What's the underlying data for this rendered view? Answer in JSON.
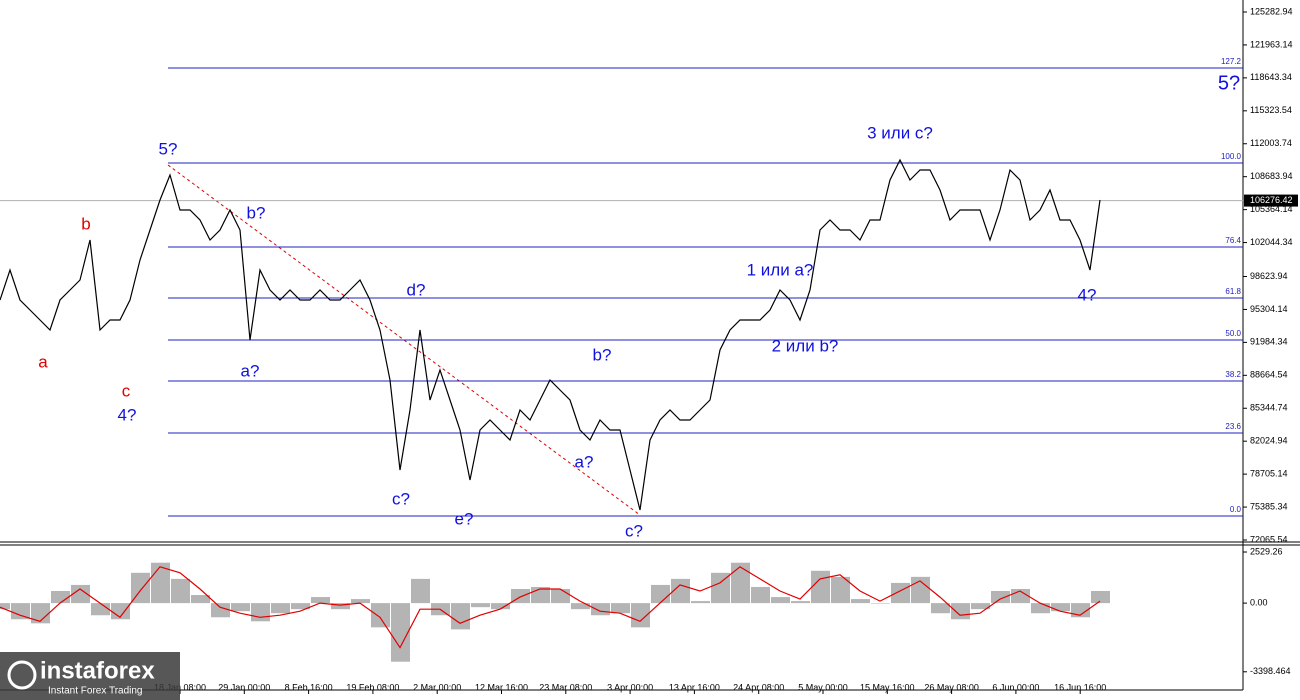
{
  "chart_data": [
    {
      "type": "line",
      "color": "#000000",
      "values": [
        96255,
        99279,
        96255,
        95247,
        94239,
        93231,
        96255,
        97263,
        98271,
        102302,
        93231,
        94239,
        94239,
        96255,
        100286,
        103310,
        106334,
        108854,
        105326,
        105326,
        104318,
        102302,
        103310,
        105326,
        103310,
        92223,
        99279,
        97263,
        96255,
        97263,
        96255,
        96255,
        97263,
        96255,
        96255,
        97263,
        98271,
        96255,
        93231,
        88192,
        79121,
        85168,
        93231,
        86176,
        89200,
        86176,
        83153,
        78113,
        83153,
        84160,
        83153,
        82144,
        85168,
        84160,
        86176,
        88192,
        87184,
        86176,
        83153,
        82144,
        84160,
        83153,
        83153,
        79121,
        75089,
        82144,
        84160,
        85168,
        84160,
        84160,
        85168,
        86176,
        91215,
        93231,
        94239,
        94239,
        94239,
        95247,
        97263,
        96255,
        94239,
        97263,
        103310,
        104318,
        103310,
        103310,
        102302,
        104318,
        104318,
        108350,
        110366,
        108350,
        109358,
        109358,
        107342,
        104318,
        105326,
        105326,
        105326,
        102302,
        105326,
        109358,
        108350,
        104318,
        105326,
        107342,
        104318,
        104318,
        102302,
        99279,
        106334
      ],
      "ylim": [
        71864,
        126492
      ],
      "yticks": [
        125282.94,
        121963.14,
        118643.34,
        115323.54,
        112003.74,
        108683.94,
        105364.14,
        102044.34,
        98623.94,
        95304.14,
        91984.34,
        88664.54,
        85344.74,
        82024.94,
        78705.14,
        75385.34,
        72065.54
      ],
      "last_price": 106276.42,
      "levels_color": "#2020c0",
      "levels": [
        {
          "value": 119639,
          "label": "127.2"
        },
        {
          "value": 110064,
          "label": "100.0"
        },
        {
          "value": 101598,
          "label": "76.4"
        },
        {
          "value": 96458,
          "label": "61.8"
        },
        {
          "value": 92225,
          "label": "50.0"
        },
        {
          "value": 88093,
          "label": "38.2"
        },
        {
          "value": 82852,
          "label": "23.6"
        },
        {
          "value": 74486,
          "label": "0.0"
        }
      ],
      "annotations": [
        {
          "text": "a",
          "color": "#e00000"
        },
        {
          "text": "b",
          "color": "#e00000"
        },
        {
          "text": "c",
          "color": "#e00000"
        },
        {
          "text": "4?",
          "color": "#1010e0"
        },
        {
          "text": "5?",
          "color": "#1010e0"
        },
        {
          "text": "b?",
          "color": "#1010e0"
        },
        {
          "text": "a?",
          "color": "#1010e0"
        },
        {
          "text": "d?",
          "color": "#1010e0"
        },
        {
          "text": "c?",
          "color": "#1010e0"
        },
        {
          "text": "e?",
          "color": "#1010e0"
        },
        {
          "text": "b?",
          "color": "#1010e0"
        },
        {
          "text": "a?",
          "color": "#1010e0"
        },
        {
          "text": "c?",
          "color": "#1010e0"
        },
        {
          "text": "1 или a?",
          "color": "#1010e0"
        },
        {
          "text": "2 или b?",
          "color": "#1010e0"
        },
        {
          "text": "3 или c?",
          "color": "#1010e0"
        },
        {
          "text": "4?",
          "color": "#1010e0"
        },
        {
          "text": "5?",
          "color": "#1010e0"
        }
      ]
    },
    {
      "type": "bar",
      "series": [
        {
          "color": "#b4b4b4",
          "values": [
            -300,
            -800,
            -1000,
            600,
            900,
            -600,
            -800,
            1500,
            2000,
            1200,
            400,
            -700,
            -400,
            -900,
            -500,
            -300,
            300,
            -300,
            200,
            -1200,
            -2900,
            1200,
            -600,
            -1300,
            -200,
            -300,
            700,
            800,
            700,
            -300,
            -600,
            -500,
            -1200,
            900,
            1200,
            100,
            1500,
            2000,
            800,
            300,
            100,
            1600,
            1300,
            200,
            0,
            1000,
            1300,
            -500,
            -800,
            -300,
            600,
            700,
            -500,
            -400,
            -700,
            600
          ]
        },
        {
          "color": "#e00000",
          "style": "line",
          "values": [
            -200,
            -600,
            -900,
            0,
            700,
            0,
            -700,
            600,
            1800,
            1500,
            700,
            -200,
            -500,
            -700,
            -600,
            -400,
            0,
            -100,
            0,
            -700,
            -2200,
            -300,
            -300,
            -1000,
            -600,
            -300,
            300,
            700,
            700,
            100,
            -400,
            -500,
            -900,
            0,
            900,
            600,
            1000,
            1800,
            1200,
            600,
            200,
            1200,
            1400,
            600,
            100,
            600,
            1100,
            300,
            -600,
            -500,
            200,
            600,
            0,
            -400,
            -600,
            100
          ]
        }
      ],
      "ylim": [
        -4300,
        2827
      ],
      "yticks": [
        2529.26,
        {
          "value": 0,
          "label": "0.00"
        },
        -3398.464
      ],
      "xtick_labels": [
        "18 Jan 08:00",
        "29 Jan 00:00",
        "8 Feb 16:00",
        "19 Feb 08:00",
        "2 Mar 00:00",
        "12 Mar 16:00",
        "23 Mar 08:00",
        "3 Apr 00:00",
        "13 Apr 16:00",
        "24 Apr 08:00",
        "5 May 00:00",
        "15 May 16:00",
        "26 May 08:00",
        "6 Jun 00:00",
        "16 Jun 16:00"
      ]
    }
  ],
  "logo": {
    "name": "instaforex",
    "tagline": "Instant Forex Trading"
  }
}
